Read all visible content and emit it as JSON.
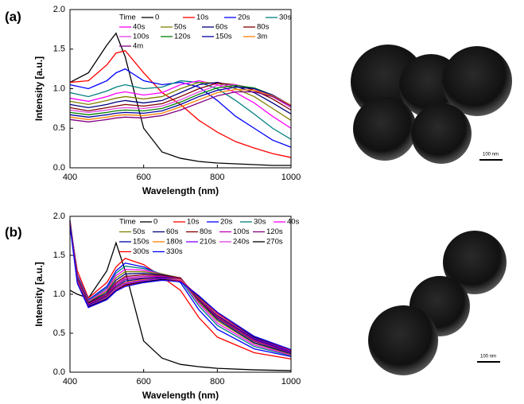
{
  "panel_labels": [
    "(a)",
    "(b)"
  ],
  "scale_bars": [
    "100 nm",
    "100 nm"
  ],
  "chart_data": [
    {
      "type": "line",
      "x_label": "Wavelength (nm)",
      "y_label": "Intensity [a.u.]",
      "legend_title": "Time",
      "legend_columns": 4,
      "legend_position": "top-right",
      "x": [
        400,
        450,
        500,
        525,
        550,
        600,
        650,
        700,
        750,
        800,
        850,
        900,
        950,
        1000
      ],
      "xlim": [
        400,
        1000
      ],
      "xticks": [
        400,
        600,
        800,
        1000
      ],
      "ylim": [
        0,
        2
      ],
      "yticks": [
        {
          "value": 0,
          "label": "0.0"
        },
        {
          "value": 0.5,
          "label": "0.5"
        },
        {
          "value": 1,
          "label": "1.0"
        },
        {
          "value": 1.5,
          "label": "1.5"
        },
        {
          "value": 2,
          "label": "2.0"
        }
      ],
      "series": [
        {
          "name": "0",
          "color": "#000000",
          "values": [
            1.08,
            1.2,
            1.55,
            1.7,
            1.4,
            0.5,
            0.2,
            0.12,
            0.08,
            0.06,
            0.05,
            0.04,
            0.03,
            0.03
          ]
        },
        {
          "name": "10s",
          "color": "#ff0000",
          "values": [
            1.08,
            1.1,
            1.3,
            1.45,
            1.48,
            1.2,
            0.95,
            0.8,
            0.6,
            0.45,
            0.33,
            0.25,
            0.18,
            0.13
          ]
        },
        {
          "name": "20s",
          "color": "#0000ff",
          "values": [
            1.05,
            1.0,
            1.1,
            1.2,
            1.25,
            1.1,
            1.05,
            1.08,
            1.02,
            0.85,
            0.65,
            0.5,
            0.35,
            0.26
          ]
        },
        {
          "name": "30s",
          "color": "#008080",
          "values": [
            0.95,
            0.9,
            0.97,
            1.02,
            1.05,
            1.0,
            1.02,
            1.1,
            1.08,
            1.0,
            0.85,
            0.68,
            0.5,
            0.36
          ]
        },
        {
          "name": "40s",
          "color": "#ff00ff",
          "values": [
            0.88,
            0.84,
            0.9,
            0.94,
            0.96,
            0.92,
            0.95,
            1.05,
            1.1,
            1.05,
            0.95,
            0.82,
            0.65,
            0.5
          ]
        },
        {
          "name": "50s",
          "color": "#808000",
          "values": [
            0.84,
            0.8,
            0.85,
            0.88,
            0.9,
            0.87,
            0.9,
            1.0,
            1.08,
            1.07,
            1.0,
            0.9,
            0.75,
            0.6
          ]
        },
        {
          "name": "60s",
          "color": "#000080",
          "values": [
            0.8,
            0.76,
            0.8,
            0.83,
            0.85,
            0.82,
            0.85,
            0.95,
            1.05,
            1.08,
            1.03,
            0.95,
            0.82,
            0.68
          ]
        },
        {
          "name": "80s",
          "color": "#800000",
          "values": [
            0.76,
            0.72,
            0.76,
            0.78,
            0.8,
            0.78,
            0.81,
            0.9,
            1.0,
            1.07,
            1.05,
            0.98,
            0.87,
            0.73
          ]
        },
        {
          "name": "100s",
          "color": "#e040e0",
          "values": [
            0.73,
            0.7,
            0.73,
            0.75,
            0.76,
            0.75,
            0.78,
            0.86,
            0.96,
            1.04,
            1.05,
            1.0,
            0.9,
            0.76
          ]
        },
        {
          "name": "120s",
          "color": "#008000",
          "values": [
            0.7,
            0.67,
            0.7,
            0.72,
            0.73,
            0.72,
            0.75,
            0.83,
            0.93,
            1.01,
            1.04,
            1.01,
            0.92,
            0.78
          ]
        },
        {
          "name": "150s",
          "color": "#0000a0",
          "values": [
            0.67,
            0.64,
            0.67,
            0.69,
            0.7,
            0.69,
            0.72,
            0.8,
            0.9,
            0.98,
            1.02,
            1.0,
            0.92,
            0.79
          ]
        },
        {
          "name": "3m",
          "color": "#ff8000",
          "values": [
            0.64,
            0.61,
            0.64,
            0.66,
            0.67,
            0.66,
            0.69,
            0.77,
            0.86,
            0.95,
            0.99,
            0.98,
            0.91,
            0.79
          ]
        },
        {
          "name": "4m",
          "color": "#800080",
          "values": [
            0.61,
            0.58,
            0.61,
            0.63,
            0.64,
            0.63,
            0.66,
            0.73,
            0.82,
            0.91,
            0.96,
            0.96,
            0.9,
            0.78
          ]
        }
      ]
    },
    {
      "type": "line",
      "x_label": "Wavelength (nm)",
      "y_label": "Intensity [a.u.]",
      "legend_title": "Time",
      "legend_columns": 5,
      "legend_position": "top-right",
      "x": [
        400,
        420,
        450,
        500,
        525,
        550,
        600,
        650,
        700,
        750,
        800,
        900,
        1000
      ],
      "xlim": [
        400,
        1000
      ],
      "xticks": [
        400,
        600,
        800,
        1000
      ],
      "ylim": [
        0,
        2
      ],
      "yticks": [
        {
          "value": 0,
          "label": "0.0"
        },
        {
          "value": 0.5,
          "label": "0.5"
        },
        {
          "value": 1,
          "label": "1.0"
        },
        {
          "value": 1.5,
          "label": "1.5"
        },
        {
          "value": 2,
          "label": "2.0"
        }
      ],
      "series": [
        {
          "name": "0",
          "color": "#000000",
          "values": [
            1.05,
            1.0,
            0.95,
            1.3,
            1.66,
            1.3,
            0.4,
            0.18,
            0.1,
            0.07,
            0.05,
            0.03,
            0.02
          ]
        },
        {
          "name": "10s",
          "color": "#ff0000",
          "values": [
            1.9,
            1.3,
            0.95,
            1.15,
            1.35,
            1.46,
            1.38,
            1.22,
            1.05,
            0.7,
            0.45,
            0.25,
            0.17
          ]
        },
        {
          "name": "20s",
          "color": "#0000ff",
          "values": [
            1.95,
            1.25,
            0.93,
            1.1,
            1.3,
            1.4,
            1.35,
            1.25,
            1.15,
            0.8,
            0.55,
            0.3,
            0.2
          ]
        },
        {
          "name": "30s",
          "color": "#008080",
          "values": [
            1.95,
            1.24,
            0.92,
            1.08,
            1.27,
            1.36,
            1.33,
            1.26,
            1.18,
            0.85,
            0.6,
            0.33,
            0.21
          ]
        },
        {
          "name": "40s",
          "color": "#ff00ff",
          "values": [
            1.94,
            1.23,
            0.91,
            1.06,
            1.24,
            1.32,
            1.31,
            1.26,
            1.2,
            0.88,
            0.63,
            0.35,
            0.22
          ]
        },
        {
          "name": "50s",
          "color": "#808000",
          "values": [
            1.94,
            1.22,
            0.9,
            1.04,
            1.21,
            1.29,
            1.29,
            1.26,
            1.21,
            0.9,
            0.66,
            0.37,
            0.23
          ]
        },
        {
          "name": "60s",
          "color": "#000080",
          "values": [
            1.93,
            1.21,
            0.89,
            1.02,
            1.18,
            1.26,
            1.27,
            1.25,
            1.21,
            0.92,
            0.68,
            0.38,
            0.24
          ]
        },
        {
          "name": "80s",
          "color": "#800000",
          "values": [
            1.93,
            1.2,
            0.88,
            1.0,
            1.15,
            1.23,
            1.25,
            1.24,
            1.21,
            0.93,
            0.7,
            0.4,
            0.25
          ]
        },
        {
          "name": "100s",
          "color": "#c000c0",
          "values": [
            1.92,
            1.19,
            0.87,
            0.99,
            1.13,
            1.21,
            1.23,
            1.23,
            1.2,
            0.94,
            0.71,
            0.41,
            0.25
          ]
        },
        {
          "name": "120s",
          "color": "#800080",
          "values": [
            1.92,
            1.18,
            0.86,
            0.98,
            1.11,
            1.19,
            1.21,
            1.22,
            1.2,
            0.95,
            0.72,
            0.42,
            0.26
          ]
        },
        {
          "name": "150s",
          "color": "#0000a0",
          "values": [
            1.91,
            1.17,
            0.86,
            0.97,
            1.09,
            1.17,
            1.2,
            1.21,
            1.19,
            0.96,
            0.73,
            0.43,
            0.26
          ]
        },
        {
          "name": "180s",
          "color": "#ff8000",
          "values": [
            1.91,
            1.17,
            0.85,
            0.96,
            1.08,
            1.15,
            1.19,
            1.2,
            1.19,
            0.96,
            0.74,
            0.44,
            0.27
          ]
        },
        {
          "name": "210s",
          "color": "#8000ff",
          "values": [
            1.9,
            1.16,
            0.85,
            0.95,
            1.07,
            1.14,
            1.18,
            1.2,
            1.18,
            0.97,
            0.75,
            0.44,
            0.27
          ]
        },
        {
          "name": "240s",
          "color": "#e040e0",
          "values": [
            1.9,
            1.16,
            0.84,
            0.94,
            1.06,
            1.13,
            1.17,
            1.19,
            1.18,
            0.97,
            0.75,
            0.45,
            0.28
          ]
        },
        {
          "name": "270s",
          "color": "#000000",
          "values": [
            1.89,
            1.15,
            0.84,
            0.94,
            1.05,
            1.12,
            1.16,
            1.19,
            1.17,
            0.97,
            0.76,
            0.45,
            0.28
          ]
        },
        {
          "name": "300s",
          "color": "#ff0000",
          "values": [
            1.89,
            1.15,
            0.83,
            0.93,
            1.04,
            1.11,
            1.15,
            1.18,
            1.17,
            0.98,
            0.76,
            0.46,
            0.28
          ]
        },
        {
          "name": "330s",
          "color": "#0000ff",
          "values": [
            1.88,
            1.14,
            0.83,
            0.93,
            1.04,
            1.1,
            1.15,
            1.18,
            1.16,
            0.98,
            0.77,
            0.46,
            0.29
          ]
        }
      ]
    }
  ]
}
